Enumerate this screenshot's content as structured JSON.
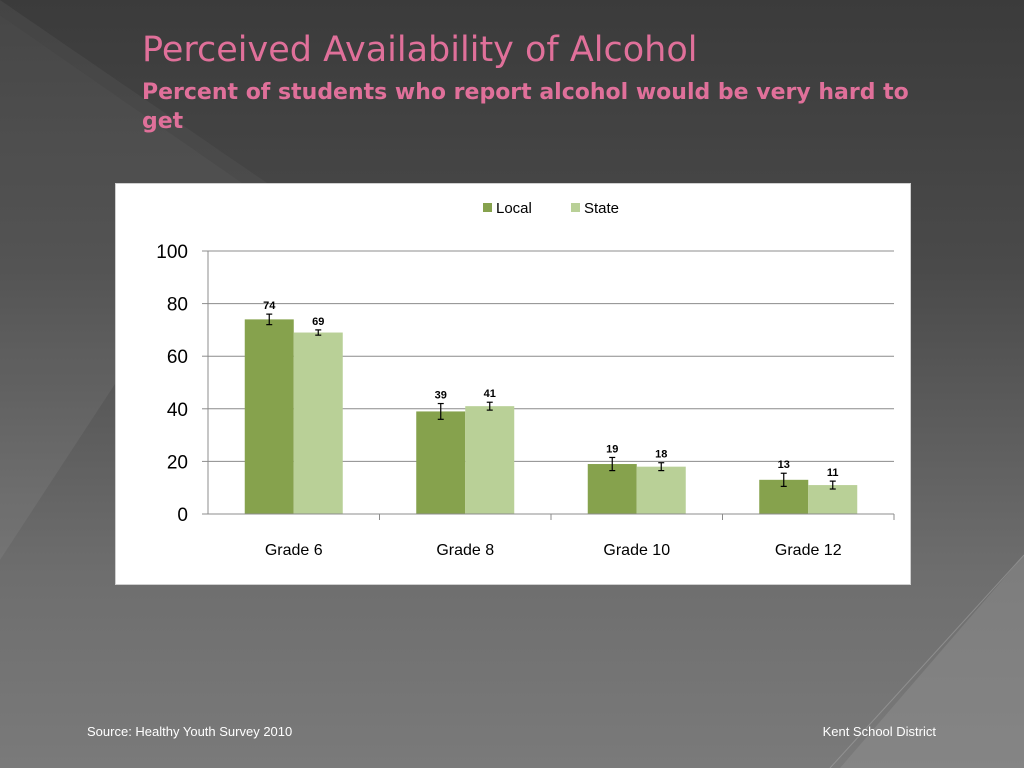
{
  "slide": {
    "title": "Perceived Availability of Alcohol",
    "subtitle": "Percent of students who report alcohol would be very hard to get",
    "source": "Source: Healthy Youth Survey 2010",
    "organization": "Kent School District"
  },
  "colors": {
    "title": "#e0709a",
    "local": "#86a24d",
    "state": "#b9d097",
    "grid": "#8c8c8c"
  },
  "chart_data": {
    "type": "bar",
    "title": "",
    "xlabel": "",
    "ylabel": "",
    "ylim": [
      0,
      100
    ],
    "yticks": [
      0,
      20,
      40,
      60,
      80,
      100
    ],
    "grid": true,
    "legend_position": "top-center",
    "categories": [
      "Grade 6",
      "Grade 8",
      "Grade 10",
      "Grade 12"
    ],
    "series": [
      {
        "name": "Local",
        "values": [
          74,
          39,
          19,
          13
        ],
        "error": [
          2,
          3,
          2.5,
          2.5
        ]
      },
      {
        "name": "State",
        "values": [
          69,
          41,
          18,
          11
        ],
        "error": [
          1,
          1.5,
          1.5,
          1.5
        ]
      }
    ]
  }
}
